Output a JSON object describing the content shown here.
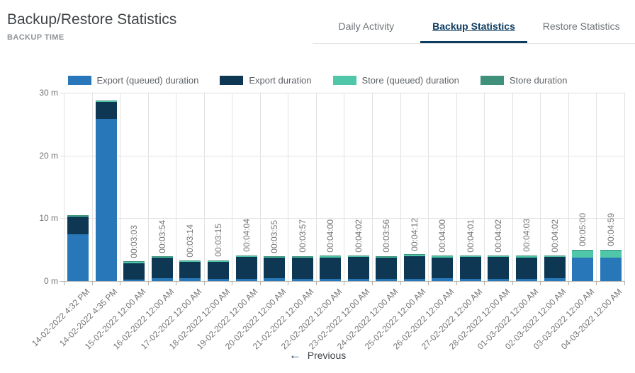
{
  "header": {
    "title": "Backup/Restore Statistics",
    "subtitle": "BACKUP TIME"
  },
  "tabs": [
    {
      "label": "Daily Activity",
      "active": false
    },
    {
      "label": "Backup Statistics",
      "active": true
    },
    {
      "label": "Restore Statistics",
      "active": false
    }
  ],
  "pagination": {
    "previous_label": "Previous",
    "previous_icon": "arrow-left-icon"
  },
  "ui_colors": {
    "accent_navy": "#0d3c61",
    "grid_line": "#e2e2e2",
    "axis_line": "#b0b0b0",
    "label_gray": "#757575"
  },
  "chart_data": {
    "type": "bar",
    "stacked": true,
    "grid": true,
    "legend_position": "top",
    "xlabel": "",
    "ylabel": "",
    "y_ticks": [
      "0 m",
      "10 m",
      "20 m",
      "30 m"
    ],
    "y_max_minutes": 30,
    "series": [
      {
        "key": "export_queued",
        "name": "Export (queued) duration",
        "color": "#2878b9"
      },
      {
        "key": "export",
        "name": "Export duration",
        "color": "#0d3753"
      },
      {
        "key": "store_queued",
        "name": "Store (queued) duration",
        "color": "#4fc7a8"
      },
      {
        "key": "store",
        "name": "Store duration",
        "color": "#3f917c"
      }
    ],
    "bars": [
      {
        "date": "14-02-2022 4:32 PM",
        "duration": "",
        "export_queued": 7.5,
        "export": 2.8,
        "store_queued": 0.1,
        "store": 0.05
      },
      {
        "date": "14-02-2022 4:35 PM",
        "duration": "",
        "export_queued": 25.8,
        "export": 2.7,
        "store_queued": 0.1,
        "store": 0.05
      },
      {
        "date": "15-02-2022 12:00 AM",
        "duration": "00:03:03",
        "export_queued": 0.25,
        "export": 2.62,
        "store_queued": 0.13,
        "store": 0.05
      },
      {
        "date": "16-02-2022 12:00 AM",
        "duration": "00:03:54",
        "export_queued": 0.5,
        "export": 3.22,
        "store_queued": 0.13,
        "store": 0.05
      },
      {
        "date": "17-02-2022 12:00 AM",
        "duration": "00:03:14",
        "export_queued": 0.45,
        "export": 2.6,
        "store_queued": 0.13,
        "store": 0.05
      },
      {
        "date": "18-02-2022 12:00 AM",
        "duration": "00:03:15",
        "export_queued": 0.3,
        "export": 2.77,
        "store_queued": 0.13,
        "store": 0.05
      },
      {
        "date": "19-02-2022 12:00 AM",
        "duration": "00:04:04",
        "export_queued": 0.35,
        "export": 3.5,
        "store_queued": 0.15,
        "store": 0.07
      },
      {
        "date": "20-02-2022 12:00 AM",
        "duration": "00:03:55",
        "export_queued": 0.4,
        "export": 3.3,
        "store_queued": 0.15,
        "store": 0.07
      },
      {
        "date": "21-02-2022 12:00 AM",
        "duration": "00:03:57",
        "export_queued": 0.35,
        "export": 3.38,
        "store_queued": 0.15,
        "store": 0.07
      },
      {
        "date": "22-02-2022 12:00 AM",
        "duration": "00:04:00",
        "export_queued": 0.35,
        "export": 3.41,
        "store_queued": 0.17,
        "store": 0.07
      },
      {
        "date": "23-02-2022 12:00 AM",
        "duration": "00:04:02",
        "export_queued": 0.3,
        "export": 3.49,
        "store_queued": 0.17,
        "store": 0.07
      },
      {
        "date": "24-02-2022 12:00 AM",
        "duration": "00:03:56",
        "export_queued": 0.35,
        "export": 3.36,
        "store_queued": 0.15,
        "store": 0.07
      },
      {
        "date": "25-02-2022 12:00 AM",
        "duration": "00:04:12",
        "export_queued": 0.3,
        "export": 3.68,
        "store_queued": 0.15,
        "store": 0.07
      },
      {
        "date": "26-02-2022 12:00 AM",
        "duration": "00:04:00",
        "export_queued": 0.4,
        "export": 3.38,
        "store_queued": 0.15,
        "store": 0.07
      },
      {
        "date": "27-02-2022 12:00 AM",
        "duration": "00:04:01",
        "export_queued": 0.3,
        "export": 3.5,
        "store_queued": 0.15,
        "store": 0.07
      },
      {
        "date": "28-02-2022 12:00 AM",
        "duration": "00:04:02",
        "export_queued": 0.35,
        "export": 3.46,
        "store_queued": 0.15,
        "store": 0.07
      },
      {
        "date": "01-03-2022 12:00 AM",
        "duration": "00:04:03",
        "export_queued": 0.35,
        "export": 3.43,
        "store_queued": 0.17,
        "store": 0.1
      },
      {
        "date": "02-03-2022 12:00 AM",
        "duration": "00:04:02",
        "export_queued": 0.4,
        "export": 3.41,
        "store_queued": 0.15,
        "store": 0.07
      },
      {
        "date": "03-03-2022 12:00 AM",
        "duration": "00:05:00",
        "export_queued": 3.7,
        "export": 0,
        "store_queued": 1.2,
        "store": 0.1
      },
      {
        "date": "04-03-2022 12:00 AM",
        "duration": "00:04:59",
        "export_queued": 3.75,
        "export": 0,
        "store_queued": 1.13,
        "store": 0.1
      }
    ]
  }
}
